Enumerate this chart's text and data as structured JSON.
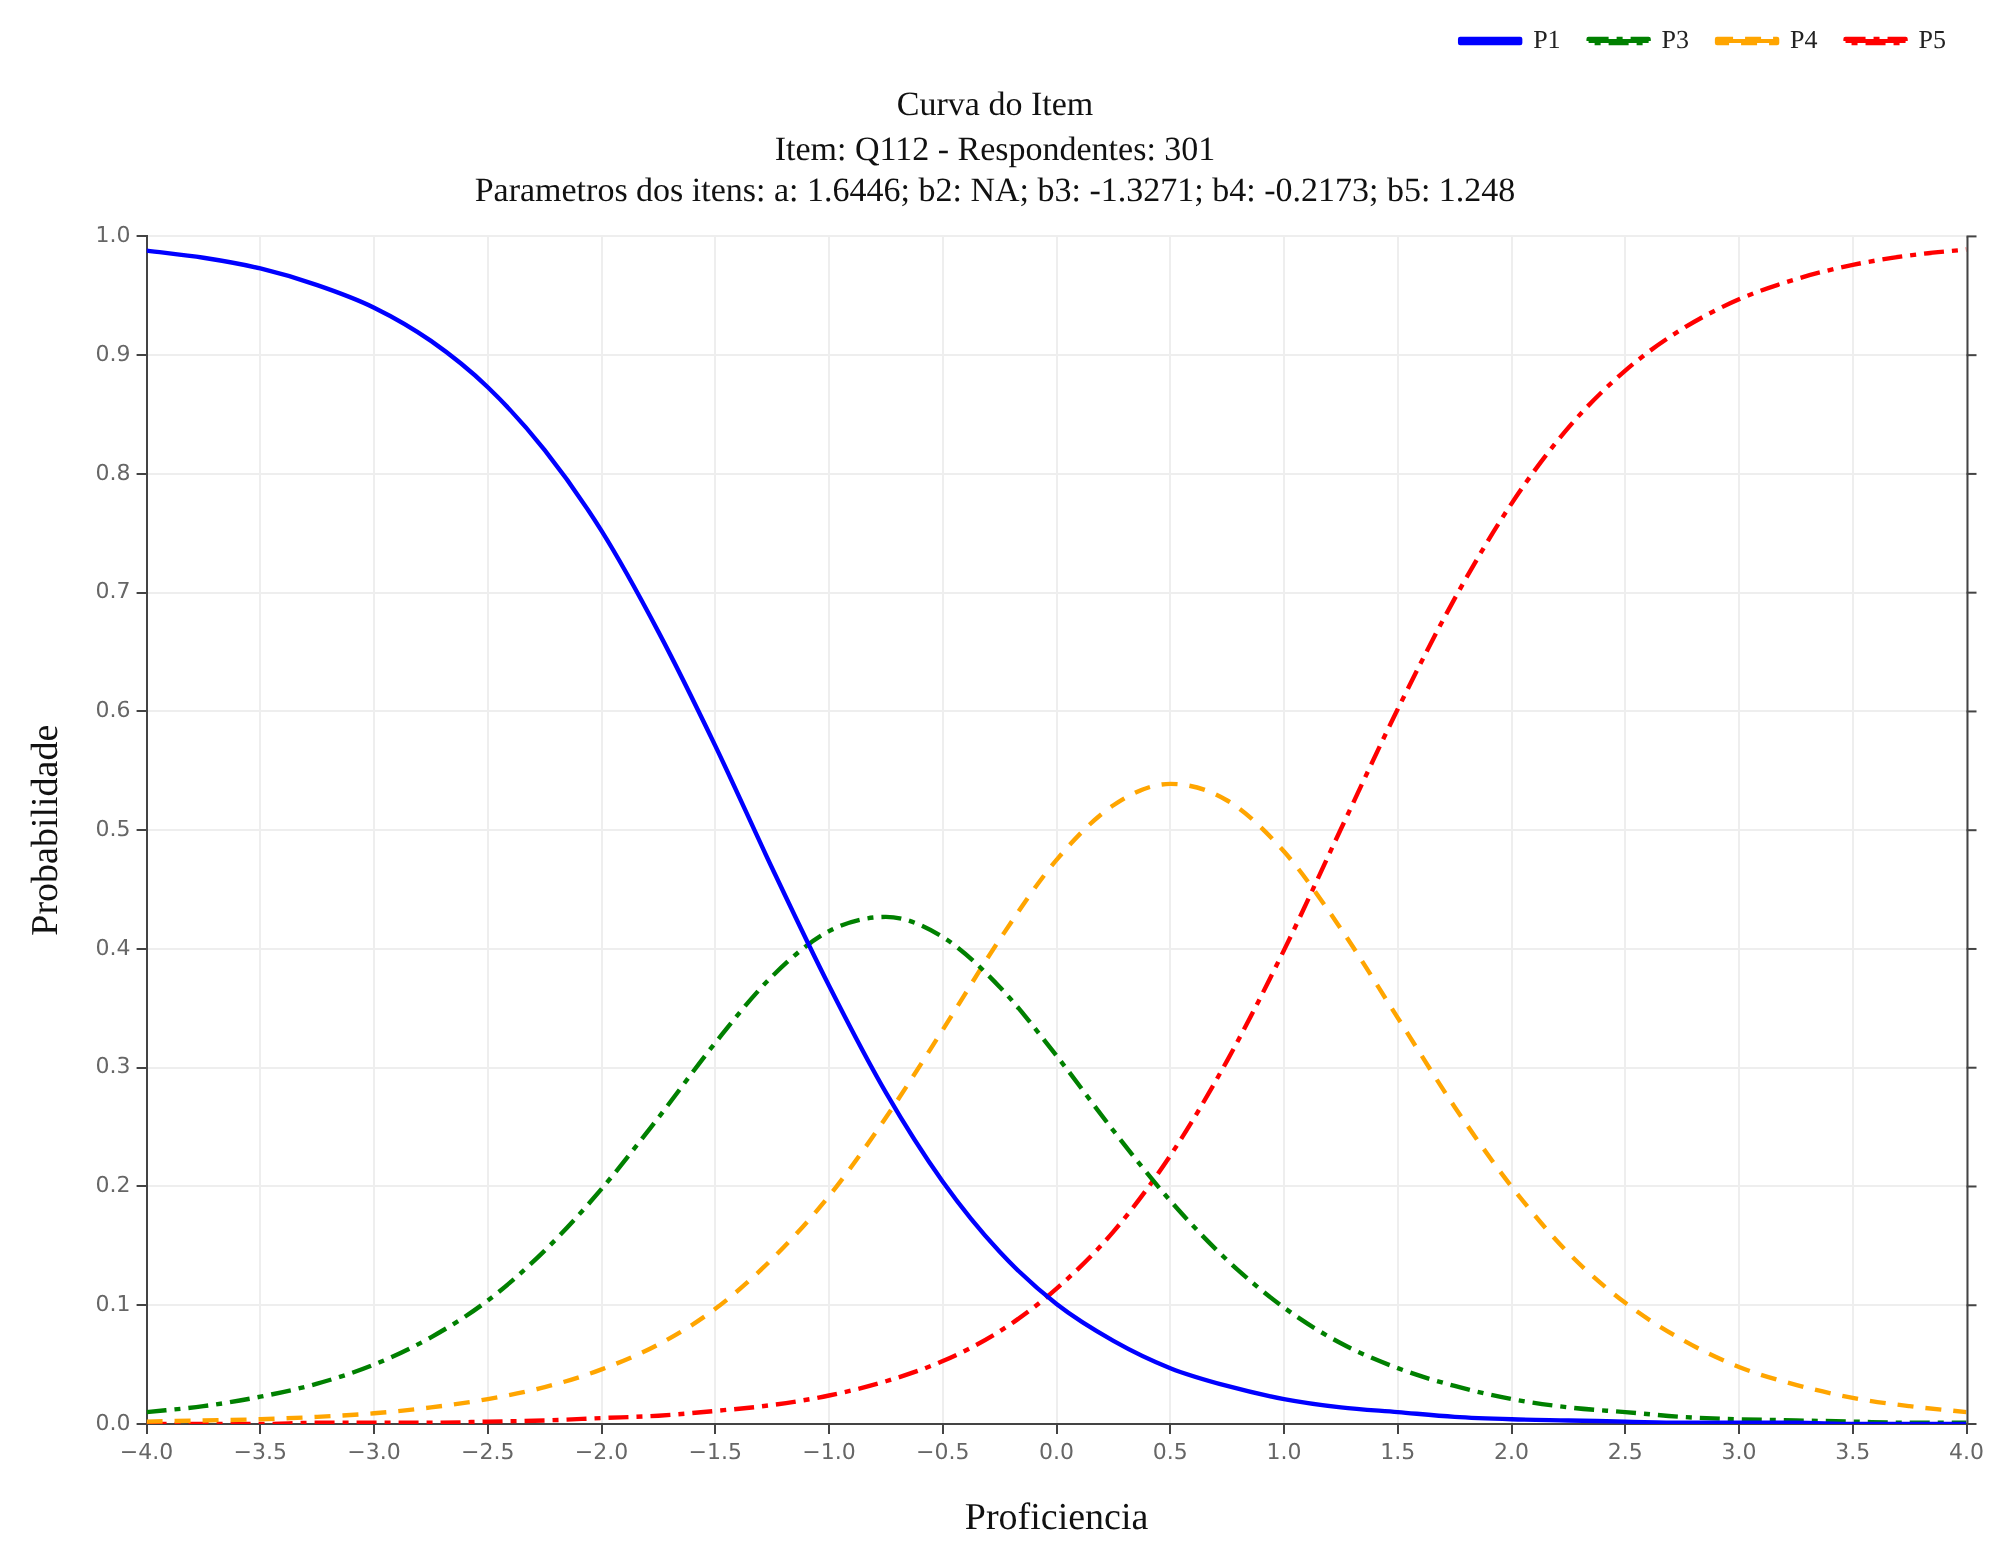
{
  "chart_data": {
    "type": "line",
    "title": "Curva do Item",
    "subtitle": "Item: Q112 - Respondentes: 301\nParametros dos itens: a: 1.6446; b2: NA; b3: -1.3271; b4: -0.2173; b5: 1.248",
    "xlabel": "Proficiencia",
    "ylabel": "Probabilidade",
    "x": [
      -4,
      -3.75,
      -3.5,
      -3.25,
      -3,
      -2.75,
      -2.5,
      -2.25,
      -2,
      -1.75,
      -1.5,
      -1.25,
      -1,
      -0.75,
      -0.5,
      -0.25,
      0,
      0.25,
      0.5,
      0.75,
      1,
      1.25,
      1.5,
      1.75,
      2,
      2.25,
      2.5,
      2.75,
      3,
      3.25,
      3.5,
      3.75,
      4
    ],
    "series": [
      {
        "name": "P1",
        "color": "#0000ff",
        "line_style": "solid",
        "values": [
          0.988,
          0.982,
          0.973,
          0.959,
          0.94,
          0.912,
          0.873,
          0.82,
          0.752,
          0.667,
          0.571,
          0.468,
          0.369,
          0.279,
          0.204,
          0.145,
          0.101,
          0.07,
          0.047,
          0.032,
          0.021,
          0.014,
          0.01,
          0.006,
          0.004,
          0.003,
          0.002,
          0.001,
          0.001,
          0.001,
          0,
          0,
          0
        ]
      },
      {
        "name": "P3",
        "color": "#008000",
        "line_style": "dashdot",
        "values": [
          0.01,
          0.015,
          0.023,
          0.034,
          0.05,
          0.073,
          0.104,
          0.146,
          0.198,
          0.258,
          0.321,
          0.377,
          0.415,
          0.427,
          0.41,
          0.368,
          0.31,
          0.247,
          0.188,
          0.138,
          0.098,
          0.068,
          0.047,
          0.032,
          0.021,
          0.014,
          0.01,
          0.006,
          0.004,
          0.003,
          0.002,
          0.001,
          0.001
        ]
      },
      {
        "name": "P4",
        "color": "#ffa500",
        "line_style": "dashed",
        "values": [
          0.002,
          0.003,
          0.004,
          0.006,
          0.009,
          0.014,
          0.021,
          0.031,
          0.046,
          0.067,
          0.097,
          0.139,
          0.192,
          0.258,
          0.332,
          0.408,
          0.475,
          0.521,
          0.539,
          0.525,
          0.482,
          0.417,
          0.342,
          0.267,
          0.2,
          0.144,
          0.102,
          0.071,
          0.048,
          0.033,
          0.022,
          0.015,
          0.01
        ]
      },
      {
        "name": "P5",
        "color": "#ff0000",
        "line_style": "dashdot",
        "values": [
          0,
          0,
          0,
          0.001,
          0.001,
          0.001,
          0.002,
          0.003,
          0.005,
          0.007,
          0.011,
          0.016,
          0.024,
          0.036,
          0.053,
          0.078,
          0.114,
          0.162,
          0.226,
          0.306,
          0.399,
          0.501,
          0.602,
          0.695,
          0.775,
          0.839,
          0.887,
          0.922,
          0.947,
          0.964,
          0.976,
          0.984,
          0.989
        ]
      }
    ],
    "xlim": [
      -4,
      4
    ],
    "xticks": [
      {
        "value": -4,
        "label": "−4.0"
      },
      {
        "value": -3.5,
        "label": "−3.5"
      },
      {
        "value": -3,
        "label": "−3.0"
      },
      {
        "value": -2.5,
        "label": "−2.5"
      },
      {
        "value": -2,
        "label": "−2.0"
      },
      {
        "value": -1.5,
        "label": "−1.5"
      },
      {
        "value": -1,
        "label": "−1.0"
      },
      {
        "value": -0.5,
        "label": "−0.5"
      },
      {
        "value": 0,
        "label": "0.0"
      },
      {
        "value": 0.5,
        "label": "0.5"
      },
      {
        "value": 1,
        "label": "1.0"
      },
      {
        "value": 1.5,
        "label": "1.5"
      },
      {
        "value": 2,
        "label": "2.0"
      },
      {
        "value": 2.5,
        "label": "2.5"
      },
      {
        "value": 3,
        "label": "3.0"
      },
      {
        "value": 3.5,
        "label": "3.5"
      },
      {
        "value": 4,
        "label": "4.0"
      }
    ],
    "ylim": [
      0,
      1
    ],
    "yticks": [
      {
        "value": 0,
        "label": "0.0"
      },
      {
        "value": 0.1,
        "label": "0.1"
      },
      {
        "value": 0.2,
        "label": "0.2"
      },
      {
        "value": 0.3,
        "label": "0.3"
      },
      {
        "value": 0.4,
        "label": "0.4"
      },
      {
        "value": 0.5,
        "label": "0.5"
      },
      {
        "value": 0.6,
        "label": "0.6"
      },
      {
        "value": 0.7,
        "label": "0.7"
      },
      {
        "value": 0.8,
        "label": "0.8"
      },
      {
        "value": 0.9,
        "label": "0.9"
      },
      {
        "value": 1,
        "label": "1.0"
      }
    ],
    "grid": true,
    "legend": "top right",
    "marker": "none"
  }
}
